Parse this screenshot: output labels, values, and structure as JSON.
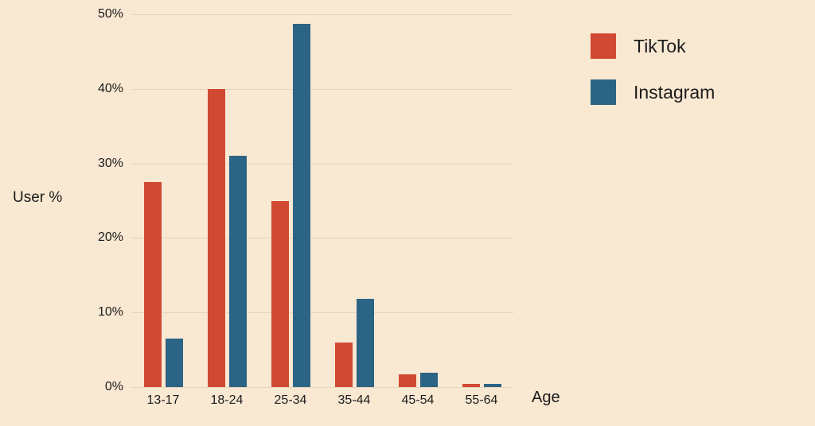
{
  "background": "#f9e8d2",
  "colors": {
    "tiktok": "#d04a33",
    "instagram": "#2c6485",
    "grid": "#e3d4bc",
    "text": "#1c1c1c"
  },
  "chart_data": {
    "type": "bar",
    "title": "",
    "categories": [
      "13-17",
      "18-24",
      "25-34",
      "35-44",
      "45-54",
      "55-64"
    ],
    "series": [
      {
        "name": "TikTok",
        "color": "#d04a33",
        "values": [
          27.5,
          40,
          25,
          6,
          1.7,
          0.4
        ]
      },
      {
        "name": "Instagram",
        "color": "#2c6485",
        "values": [
          6.5,
          31,
          48.7,
          11.8,
          1.9,
          0.4
        ]
      }
    ],
    "xlabel": "Age",
    "ylabel": "User %",
    "ylim": [
      0,
      50
    ],
    "yticks": [
      0,
      10,
      20,
      30,
      40,
      50
    ],
    "ytick_labels": [
      "0%",
      "10%",
      "20%",
      "30%",
      "40%",
      "50%"
    ],
    "grid": true,
    "legend_position": "top-right"
  }
}
